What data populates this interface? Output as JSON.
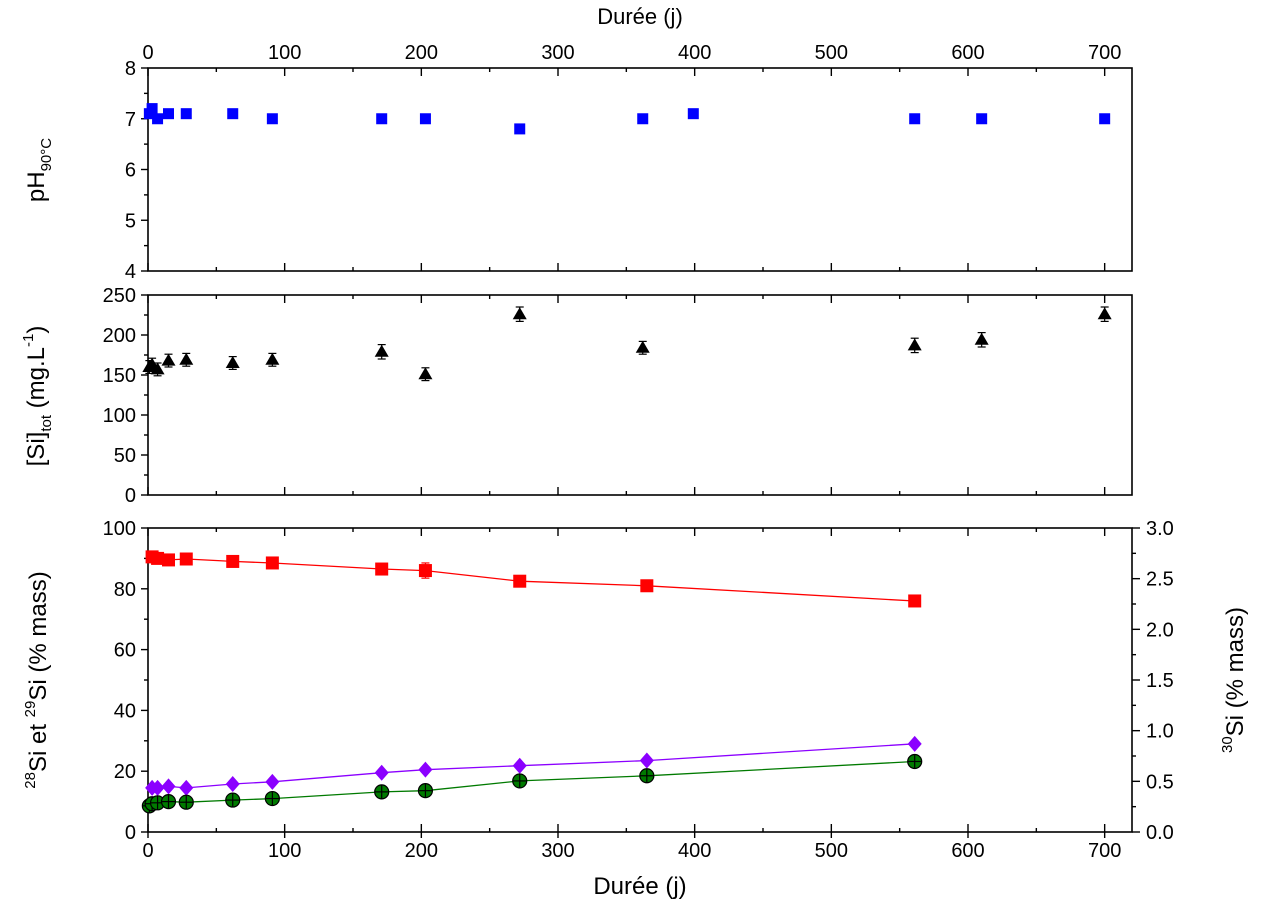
{
  "chart_data": [
    {
      "type": "scatter",
      "id": "ph",
      "ylabel": {
        "main": "pH",
        "sub": "90°C"
      },
      "top_xlabel": "Durée (j)",
      "xlim": [
        0,
        720
      ],
      "ylim": [
        4,
        8
      ],
      "x_ticks": [
        0,
        100,
        200,
        300,
        400,
        500,
        600,
        700
      ],
      "y_ticks": [
        4,
        5,
        6,
        7,
        8
      ],
      "series": [
        {
          "color": "#0000ff",
          "marker": "square",
          "x": [
            1,
            3,
            7,
            15,
            28,
            62,
            91,
            171,
            203,
            272,
            362,
            399,
            561,
            610,
            700
          ],
          "y": [
            7.1,
            7.2,
            7.0,
            7.1,
            7.1,
            7.1,
            7.0,
            7.0,
            7.0,
            6.8,
            7.0,
            7.1,
            7.0,
            7.0,
            7.0
          ],
          "err": [
            0.05,
            0.05,
            0.05,
            0.05,
            0.05,
            0.05,
            0.05,
            0.05,
            0.05,
            0.05,
            0.05,
            0.05,
            0.05,
            0.05,
            0.05
          ]
        }
      ]
    },
    {
      "type": "scatter",
      "id": "si_tot",
      "ylabel": {
        "main": "[Si]",
        "sub": "tot",
        "tail": " (mg.L",
        "sup": "-1",
        "end": ")"
      },
      "xlim": [
        0,
        720
      ],
      "ylim": [
        0,
        250
      ],
      "x_ticks": [
        0,
        100,
        200,
        300,
        400,
        500,
        600,
        700
      ],
      "y_ticks": [
        0,
        50,
        100,
        150,
        200,
        250
      ],
      "series": [
        {
          "color": "#000000",
          "marker": "triangle",
          "x": [
            1,
            3,
            7,
            15,
            28,
            62,
            91,
            171,
            203,
            272,
            362,
            561,
            610,
            700
          ],
          "y": [
            160,
            163,
            157,
            168,
            169,
            165,
            169,
            179,
            151,
            226,
            184,
            187,
            194,
            226
          ],
          "err": [
            8,
            8,
            8,
            8,
            8,
            8,
            8,
            9,
            8,
            9,
            8,
            9,
            9,
            9
          ]
        }
      ]
    },
    {
      "type": "line",
      "id": "isotopes",
      "xlabel": "Durée (j)",
      "ylabel": {
        "a": "Si et ",
        "b": "Si (% mass)",
        "supA": "28",
        "supB": "29"
      },
      "ylabel_right": {
        "sup": "30",
        "main": "Si (% mass)"
      },
      "xlim": [
        0,
        720
      ],
      "ylim": [
        0,
        100
      ],
      "ylim_right": [
        0,
        3
      ],
      "x_ticks": [
        0,
        100,
        200,
        300,
        400,
        500,
        600,
        700
      ],
      "y_ticks": [
        0,
        20,
        40,
        60,
        80,
        100
      ],
      "y_ticks_right": [
        "0.0",
        "0.5",
        "1.0",
        "1.5",
        "2.0",
        "2.5",
        "3.0"
      ],
      "series": [
        {
          "color": "#ff0000",
          "marker": "square",
          "x": [
            3,
            7,
            15,
            28,
            62,
            91,
            171,
            203,
            272,
            365,
            561
          ],
          "y": [
            90.5,
            90.0,
            89.5,
            89.8,
            89.0,
            88.5,
            86.5,
            86.0,
            82.5,
            81.0,
            76.0
          ],
          "err": [
            0.5,
            0.5,
            0.5,
            0.5,
            0.5,
            0.5,
            1.8,
            2.5,
            0.5,
            0.5,
            0.5
          ]
        },
        {
          "color": "#8b00ff",
          "marker": "diamond",
          "x": [
            3,
            7,
            15,
            28,
            62,
            91,
            171,
            203,
            272,
            365,
            561
          ],
          "y": [
            14.5,
            14.5,
            15.0,
            14.5,
            15.8,
            16.5,
            19.5,
            20.5,
            21.8,
            23.5,
            29.0
          ]
        },
        {
          "color": "#007a00",
          "marker": "circle-plus",
          "x": [
            1,
            3,
            7,
            15,
            28,
            62,
            91,
            171,
            203,
            272,
            365,
            561
          ],
          "y": [
            8.6,
            9.3,
            9.6,
            10.0,
            9.8,
            10.5,
            11.0,
            13.2,
            13.6,
            16.8,
            18.5,
            23.2
          ]
        }
      ]
    }
  ]
}
